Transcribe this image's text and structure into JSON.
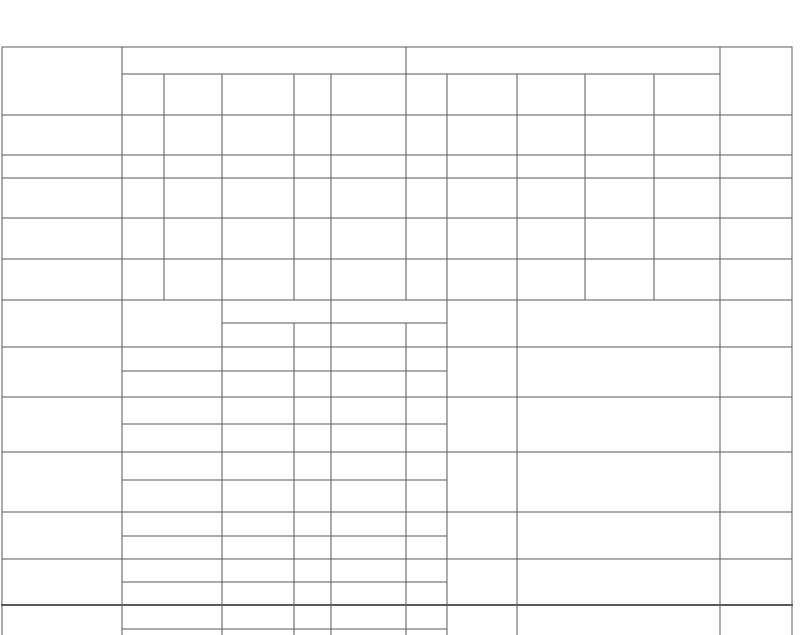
{
  "document": {
    "kind": "blank ruled form",
    "line_color": "#5a5a5a",
    "background": "#ffffff",
    "text": []
  }
}
